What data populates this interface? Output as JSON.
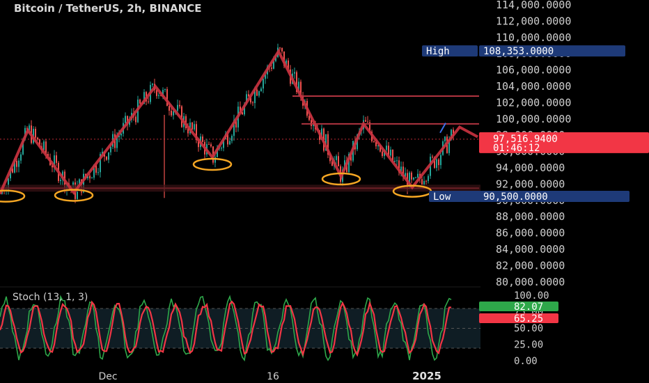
{
  "chart_data": {
    "type": "candlestick",
    "title": "Bitcoin / TetherUS, 2h, BINANCE",
    "price_axis": {
      "ticks": [
        "114,000.0000",
        "112,000.0000",
        "110,000.0000",
        "108,000.0000",
        "106,000.0000",
        "104,000.0000",
        "102,000.0000",
        "100,000.0000",
        "98,000.0000",
        "96,000.0000",
        "94,000.0000",
        "92,000.0000",
        "90,000.0000",
        "88,000.0000",
        "86,000.0000",
        "84,000.0000",
        "82,000.0000",
        "80,000.0000"
      ],
      "range": [
        79200,
        114500
      ]
    },
    "time_axis": {
      "labels": [
        "Dec",
        "16",
        "2025"
      ]
    },
    "high_tag": {
      "label": "High",
      "value": "108,353.0000",
      "price": 108353,
      "color": "#1e3a78"
    },
    "low_tag": {
      "label": "Low",
      "value": "90,500.0000",
      "price": 90500,
      "color": "#1e3a78"
    },
    "last_price_tag": {
      "value": "97,516.9400",
      "countdown": "01:46:12",
      "price": 97517,
      "color": "#f23645"
    },
    "zigzag_pattern": {
      "color": "#c8323f",
      "points": [
        {
          "t": 0,
          "p": 90800
        },
        {
          "t": 40,
          "p": 98600
        },
        {
          "t": 106,
          "p": 90950
        },
        {
          "t": 223,
          "p": 104000
        },
        {
          "t": 305,
          "p": 95300
        },
        {
          "t": 400,
          "p": 108300
        },
        {
          "t": 490,
          "p": 92900
        },
        {
          "t": 522,
          "p": 99400
        },
        {
          "t": 592,
          "p": 91600
        },
        {
          "t": 660,
          "p": 99000
        },
        {
          "t": 686,
          "p": 97800
        }
      ],
      "projection_segment": [
        {
          "t": 632,
          "p": 98300
        },
        {
          "t": 640,
          "p": 99500
        }
      ],
      "projection_color": "#3a6ee8"
    },
    "horizontal_levels": [
      {
        "price": 102800,
        "from_t": 420,
        "color": "#b03440"
      },
      {
        "price": 99400,
        "from_t": 433,
        "color": "#b03440"
      },
      {
        "price": 91500,
        "from_t": 0,
        "color": "#6b1f26"
      }
    ],
    "swing_low_markers": [
      {
        "t": 8,
        "p": 90700
      },
      {
        "t": 106,
        "p": 90800
      },
      {
        "t": 305,
        "p": 94600
      },
      {
        "t": 490,
        "p": 92800
      },
      {
        "t": 592,
        "p": 91300
      }
    ],
    "oscillator": {
      "name": "Stoch (13, 1, 3)",
      "ticks": [
        "100.00",
        "75.00",
        "50.00",
        "25.00",
        "0.00"
      ],
      "range": [
        0,
        100
      ],
      "bands": [
        80,
        20
      ],
      "k_value": "82.07",
      "d_value": "65.25",
      "k_color": "#2ea84a",
      "d_color": "#f23645"
    },
    "colors": {
      "bull": "#26a69a",
      "bear": "#ef5350",
      "background": "#000000"
    }
  }
}
